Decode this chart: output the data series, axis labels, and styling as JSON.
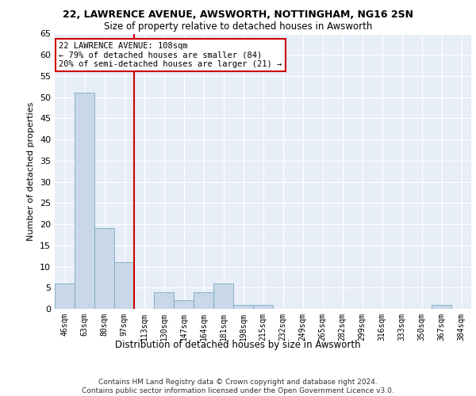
{
  "title1": "22, LAWRENCE AVENUE, AWSWORTH, NOTTINGHAM, NG16 2SN",
  "title2": "Size of property relative to detached houses in Awsworth",
  "xlabel": "Distribution of detached houses by size in Awsworth",
  "ylabel": "Number of detached properties",
  "bins": [
    "46sqm",
    "63sqm",
    "80sqm",
    "97sqm",
    "113sqm",
    "130sqm",
    "147sqm",
    "164sqm",
    "181sqm",
    "198sqm",
    "215sqm",
    "232sqm",
    "249sqm",
    "265sqm",
    "282sqm",
    "299sqm",
    "316sqm",
    "333sqm",
    "350sqm",
    "367sqm",
    "384sqm"
  ],
  "values": [
    6,
    51,
    19,
    11,
    0,
    4,
    2,
    4,
    6,
    1,
    1,
    0,
    0,
    0,
    0,
    0,
    0,
    0,
    0,
    1,
    0
  ],
  "bar_color": "#c8d8e8",
  "bar_edge_color": "#7aaabb",
  "vline_x": 3.5,
  "vline_color": "#cc0000",
  "annotation_text": "22 LAWRENCE AVENUE: 108sqm\n← 79% of detached houses are smaller (84)\n20% of semi-detached houses are larger (21) →",
  "annotation_box_color": "white",
  "annotation_box_edge": "#cc0000",
  "ylim": [
    0,
    65
  ],
  "yticks": [
    0,
    5,
    10,
    15,
    20,
    25,
    30,
    35,
    40,
    45,
    50,
    55,
    60,
    65
  ],
  "background_color": "#e8eef8",
  "footer": "Contains HM Land Registry data © Crown copyright and database right 2024.\nContains public sector information licensed under the Open Government Licence v3.0."
}
